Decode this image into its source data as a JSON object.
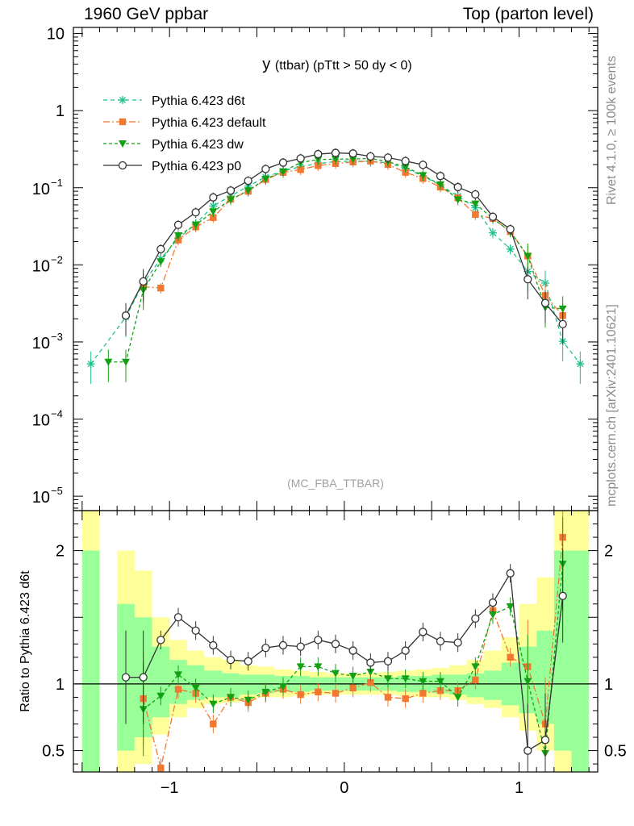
{
  "header": {
    "left": "1960 GeV ppbar",
    "right": "Top (parton level)"
  },
  "side_labels": {
    "rivet": "Rivet 4.1.0, ≥ 100k events",
    "mcplots": "mcplots.cern.ch [arXiv:2401.10621]"
  },
  "chart_data": {
    "type": "line",
    "title": "y (ttbar) (pTtt > 50 dy < 0)",
    "title_main": "y",
    "title_sub": "(ttbar) (pTtt > 50 dy < 0)",
    "analysis_label": "(MC_FBA_TTBAR)",
    "xlabel": "",
    "ylabel": "",
    "xlim": [
      -1.55,
      1.45
    ],
    "ylim": [
      6.5e-06,
      12
    ],
    "yscale": "log",
    "grid": false,
    "legend_position": "top-left",
    "x_ticks": [
      {
        "value": -1,
        "label": "−1"
      },
      {
        "value": 0,
        "label": "0"
      },
      {
        "value": 1,
        "label": "1"
      }
    ],
    "y_ticks_main": [
      {
        "value": 10,
        "label": "10"
      },
      {
        "value": 1,
        "label": "1"
      },
      {
        "value": 0.1,
        "label": "10",
        "exp": "−1"
      },
      {
        "value": 0.01,
        "label": "10",
        "exp": "−2"
      },
      {
        "value": 0.001,
        "label": "10",
        "exp": "−3"
      },
      {
        "value": 0.0001,
        "label": "10",
        "exp": "−4"
      },
      {
        "value": 1e-05,
        "label": "10",
        "exp": "−5"
      }
    ],
    "x": [
      -1.45,
      -1.35,
      -1.25,
      -1.15,
      -1.05,
      -0.95,
      -0.85,
      -0.75,
      -0.65,
      -0.55,
      -0.45,
      -0.35,
      -0.25,
      -0.15,
      -0.05,
      0.05,
      0.15,
      0.25,
      0.35,
      0.45,
      0.55,
      0.65,
      0.75,
      0.85,
      0.95,
      1.05,
      1.15,
      1.25,
      1.35
    ],
    "series": [
      {
        "name": "Pythia 6.423 d6t",
        "color": "#1ec38c",
        "marker": "asterisk",
        "dash": "5,4",
        "values": [
          0.00052,
          null,
          0.0021,
          0.0058,
          0.012,
          0.022,
          0.034,
          0.058,
          0.078,
          0.105,
          0.138,
          0.165,
          0.188,
          0.206,
          0.218,
          0.222,
          0.22,
          0.21,
          0.178,
          0.142,
          0.108,
          0.078,
          0.055,
          0.026,
          0.016,
          0.0082,
          0.0058,
          0.00102,
          0.00052
        ]
      },
      {
        "name": "Pythia 6.423 default",
        "color": "#f07830",
        "marker": "square",
        "dash": "8,3,2,3",
        "values": [
          null,
          null,
          null,
          0.0052,
          0.005,
          0.021,
          0.031,
          0.041,
          0.071,
          0.09,
          0.128,
          0.158,
          0.172,
          0.194,
          0.206,
          0.216,
          0.222,
          0.2,
          0.158,
          0.132,
          0.102,
          0.074,
          0.045,
          0.04,
          0.027,
          0.013,
          0.004,
          0.0022,
          null
        ]
      },
      {
        "name": "Pythia 6.423 dw",
        "color": "#14a014",
        "marker": "triangle-down",
        "dash": "4,3",
        "values": [
          null,
          0.00055,
          0.00055,
          0.0047,
          0.011,
          0.024,
          0.033,
          0.049,
          0.07,
          0.092,
          0.13,
          0.162,
          0.212,
          0.232,
          0.235,
          0.236,
          0.24,
          0.218,
          0.186,
          0.145,
          0.11,
          0.07,
          0.062,
          0.04,
          0.027,
          0.013,
          0.0028,
          0.0027,
          null
        ]
      },
      {
        "name": "Pythia 6.423 p0",
        "color": "#333333",
        "marker": "circle-open",
        "dash": "",
        "values": [
          null,
          null,
          0.0022,
          0.0061,
          0.016,
          0.033,
          0.048,
          0.075,
          0.092,
          0.123,
          0.175,
          0.212,
          0.24,
          0.273,
          0.283,
          0.278,
          0.255,
          0.246,
          0.222,
          0.198,
          0.142,
          0.102,
          0.082,
          0.042,
          0.029,
          0.0065,
          0.0032,
          0.0017,
          null
        ]
      }
    ],
    "ratio_panel": {
      "ylabel": "Ratio to Pythia 6.423 d6t",
      "ylim": [
        0.34,
        2.3
      ],
      "y_ticks": [
        {
          "value": 2,
          "label": "2"
        },
        {
          "value": 1,
          "label": "1"
        },
        {
          "value": 0.5,
          "label": "0.5"
        }
      ],
      "band_inner": [
        [
          0.1,
          2.0
        ],
        null,
        [
          0.5,
          1.6
        ],
        [
          0.6,
          1.5
        ],
        [
          0.75,
          1.28
        ],
        [
          0.85,
          1.18
        ],
        [
          0.88,
          1.14
        ],
        [
          0.9,
          1.1
        ],
        [
          0.9,
          1.08
        ],
        [
          0.92,
          1.07
        ],
        [
          0.93,
          1.07
        ],
        [
          0.94,
          1.06
        ],
        [
          0.94,
          1.06
        ],
        [
          0.95,
          1.05
        ],
        [
          0.95,
          1.05
        ],
        [
          0.95,
          1.05
        ],
        [
          0.95,
          1.05
        ],
        [
          0.95,
          1.05
        ],
        [
          0.94,
          1.06
        ],
        [
          0.94,
          1.06
        ],
        [
          0.93,
          1.07
        ],
        [
          0.92,
          1.07
        ],
        [
          0.9,
          1.08
        ],
        [
          0.88,
          1.1
        ],
        [
          0.84,
          1.16
        ],
        [
          0.78,
          1.28
        ],
        [
          0.7,
          1.4
        ],
        [
          0.5,
          2.0
        ],
        [
          0.1,
          2.0
        ]
      ],
      "band_outer": [
        [
          0.1,
          2.5
        ],
        null,
        [
          0.3,
          2.0
        ],
        [
          0.4,
          1.85
        ],
        [
          0.62,
          1.5
        ],
        [
          0.75,
          1.33
        ],
        [
          0.82,
          1.25
        ],
        [
          0.85,
          1.2
        ],
        [
          0.86,
          1.18
        ],
        [
          0.88,
          1.14
        ],
        [
          0.9,
          1.13
        ],
        [
          0.9,
          1.11
        ],
        [
          0.91,
          1.1
        ],
        [
          0.92,
          1.09
        ],
        [
          0.92,
          1.08
        ],
        [
          0.92,
          1.08
        ],
        [
          0.92,
          1.08
        ],
        [
          0.92,
          1.09
        ],
        [
          0.91,
          1.1
        ],
        [
          0.9,
          1.11
        ],
        [
          0.9,
          1.12
        ],
        [
          0.88,
          1.14
        ],
        [
          0.85,
          1.18
        ],
        [
          0.82,
          1.25
        ],
        [
          0.75,
          1.35
        ],
        [
          0.65,
          1.6
        ],
        [
          0.5,
          1.8
        ],
        [
          0.3,
          2.5
        ],
        [
          0.1,
          2.5
        ]
      ],
      "series": [
        {
          "name": "Pythia 6.423 default",
          "values": [
            null,
            null,
            null,
            0.89,
            0.37,
            0.96,
            0.93,
            0.7,
            0.9,
            0.86,
            0.93,
            0.96,
            0.92,
            0.94,
            0.93,
            0.97,
            1.01,
            0.9,
            0.89,
            0.93,
            0.95,
            0.95,
            1.03,
            1.55,
            1.2,
            1.13,
            0.7,
            2.1,
            null
          ]
        },
        {
          "name": "Pythia 6.423 dw",
          "values": [
            null,
            null,
            null,
            0.81,
            0.91,
            1.07,
            0.97,
            0.85,
            0.9,
            0.88,
            0.94,
            0.98,
            1.13,
            1.13,
            1.08,
            1.06,
            1.09,
            1.04,
            1.04,
            1.02,
            1.02,
            0.9,
            1.13,
            1.52,
            1.58,
            1.02,
            0.48,
            1.9,
            null
          ]
        },
        {
          "name": "Pythia 6.423 p0",
          "values": [
            null,
            null,
            1.05,
            1.05,
            1.33,
            1.5,
            1.4,
            1.29,
            1.18,
            1.17,
            1.27,
            1.29,
            1.28,
            1.33,
            1.3,
            1.25,
            1.16,
            1.17,
            1.25,
            1.39,
            1.32,
            1.31,
            1.49,
            1.61,
            1.83,
            0.5,
            0.58,
            1.66,
            null
          ]
        }
      ]
    }
  }
}
